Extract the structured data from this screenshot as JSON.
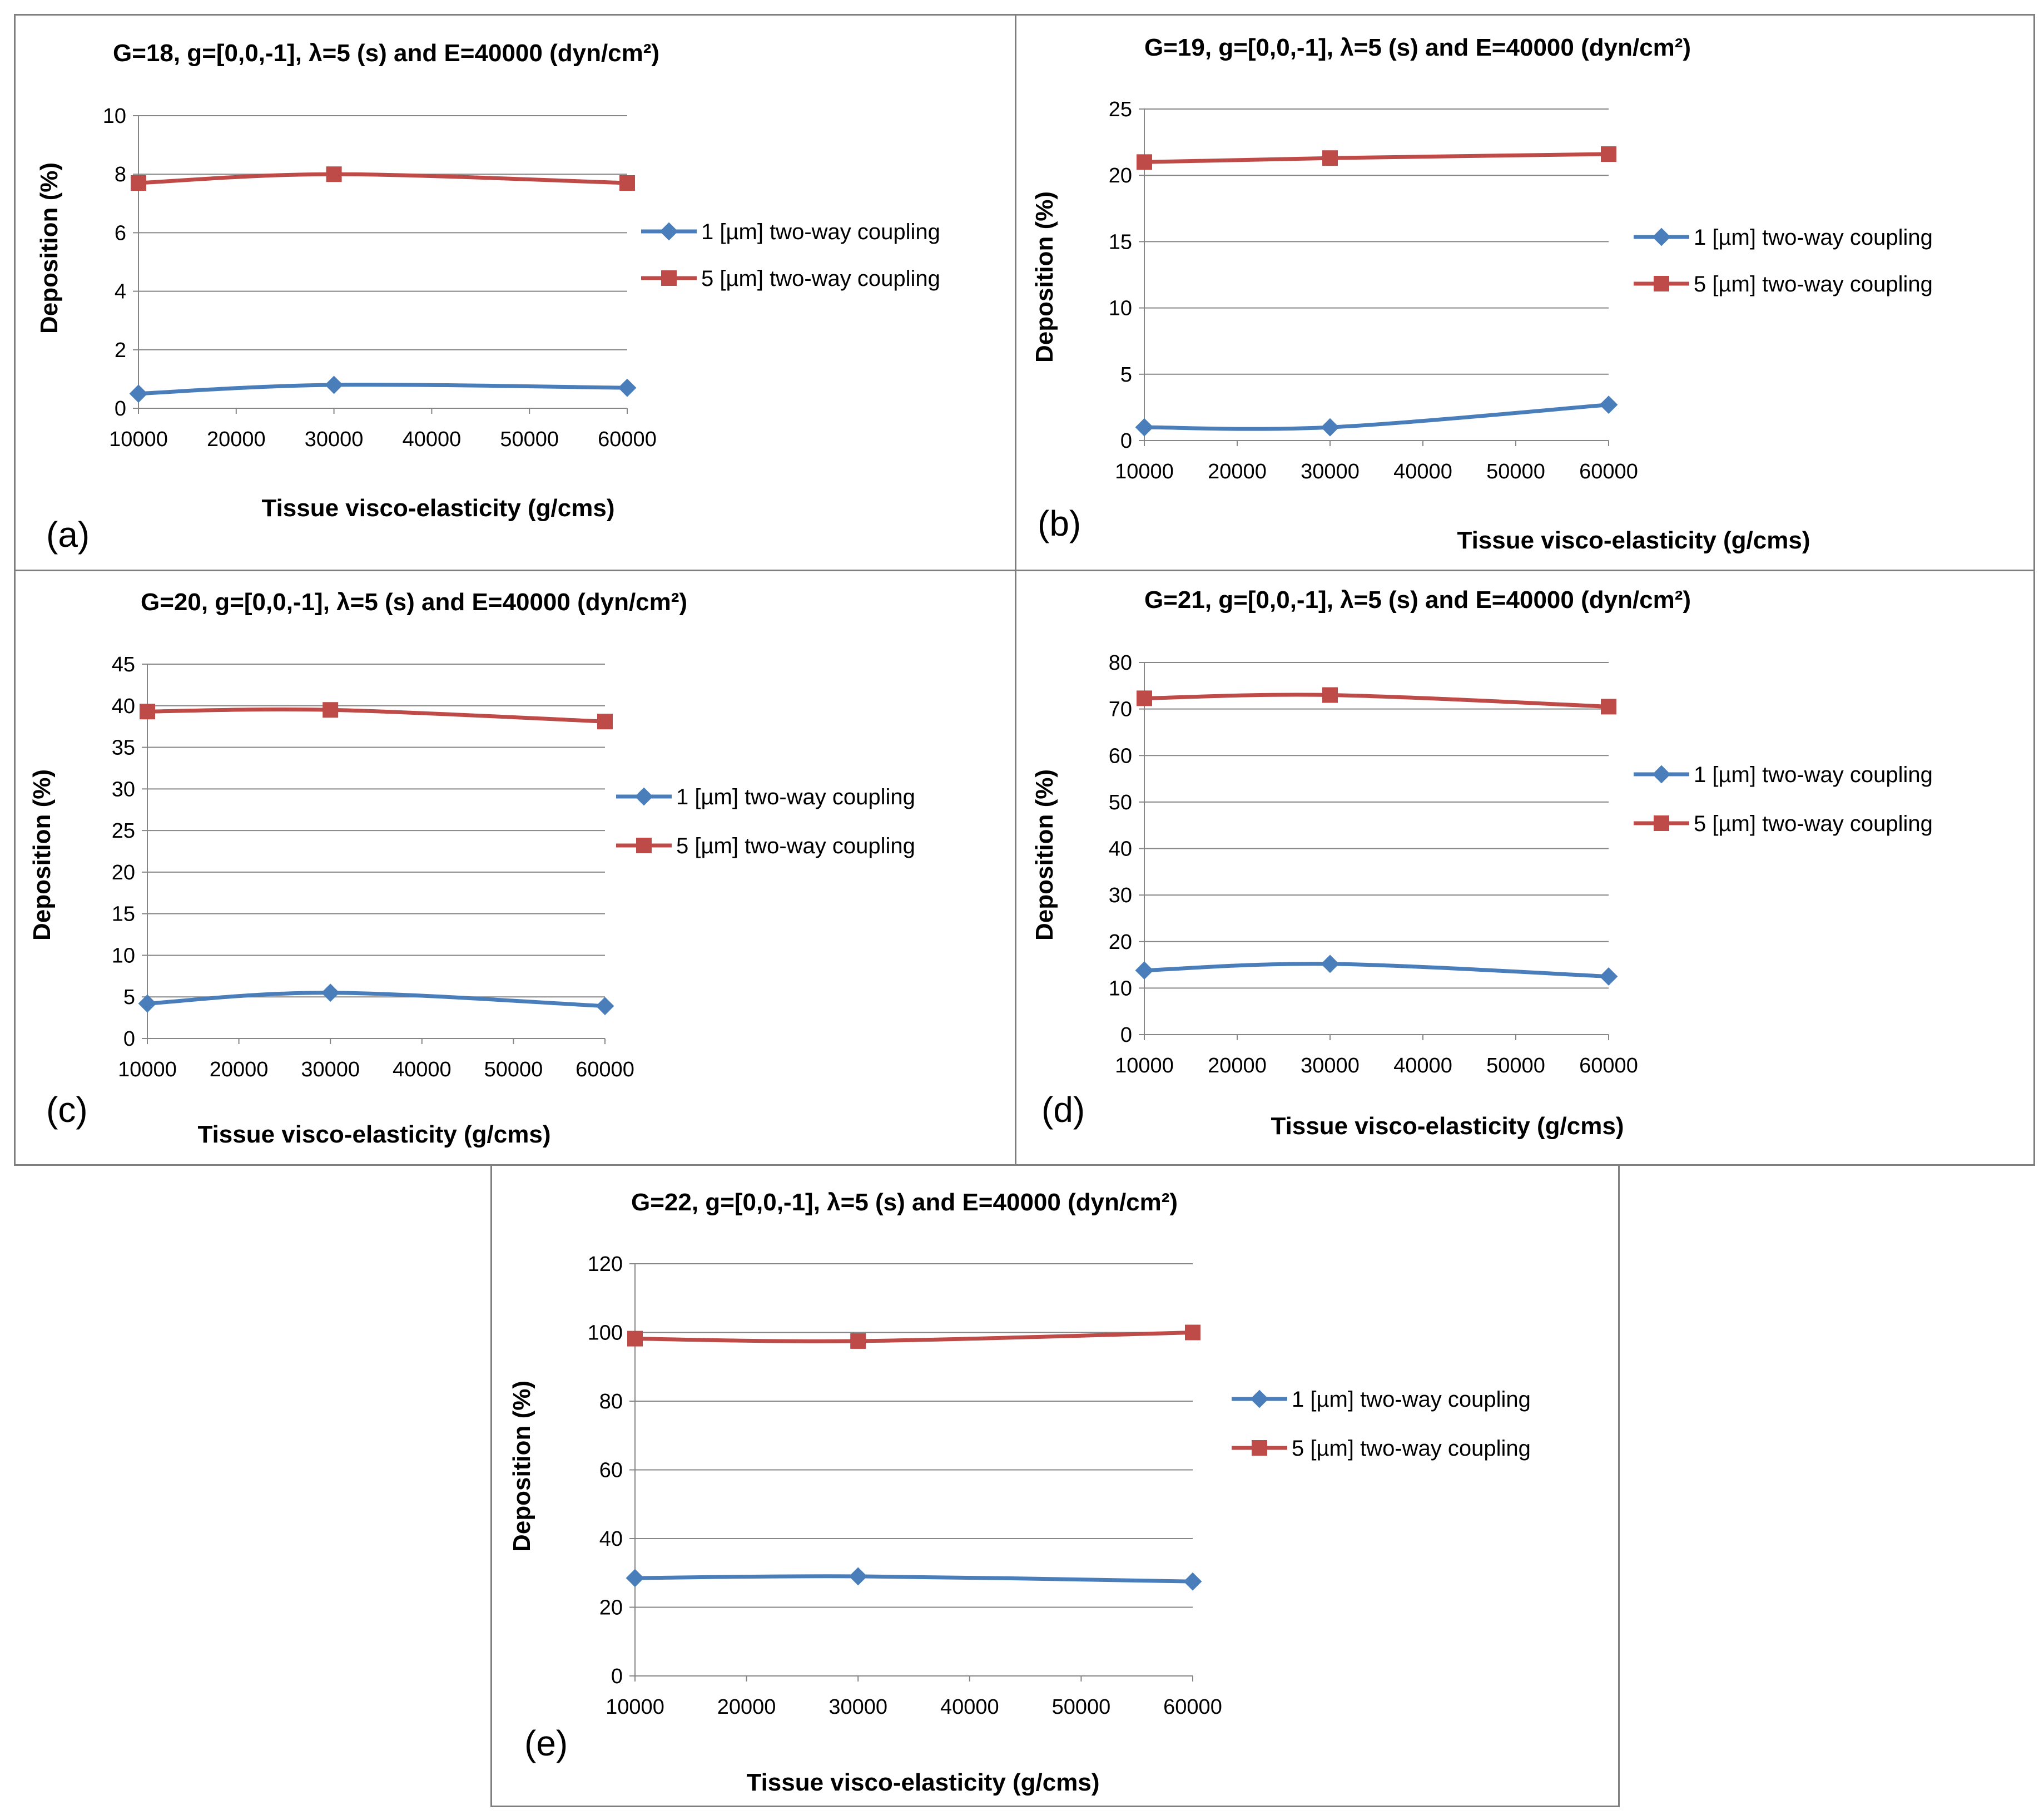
{
  "figure": {
    "axis_x_title": "Tissue visco-elasticity (g/cms)",
    "axis_y_title": "Deposition (%)"
  },
  "chart_data": [
    {
      "type": "line",
      "panel_label": "(a)",
      "title": "G=18, g=[0,0,-1],  λ=5 (s) and E=40000 (dyn/cm²)",
      "xlabel": "Tissue visco-elasticity (g/cms)",
      "ylabel": "Deposition (%)",
      "x_ticks": [
        "10000",
        "20000",
        "30000",
        "40000",
        "50000",
        "60000"
      ],
      "y_ticks": [
        "0",
        "2",
        "4",
        "6",
        "8",
        "10"
      ],
      "xlim": [
        10000,
        60000
      ],
      "ylim": [
        0,
        10
      ],
      "x": [
        10000,
        30000,
        60000
      ],
      "series": [
        {
          "name": "1 [µm] two-way coupling",
          "color": "#4a7ebb",
          "marker": "diamond",
          "values": [
            0.5,
            0.8,
            0.7
          ]
        },
        {
          "name": "5 [µm] two-way coupling",
          "color": "#be4b48",
          "marker": "square",
          "values": [
            7.7,
            8.0,
            7.7
          ]
        }
      ]
    },
    {
      "type": "line",
      "panel_label": "(b)",
      "title": "G=19, g=[0,0,-1],  λ=5 (s) and E=40000 (dyn/cm²)",
      "xlabel": "Tissue visco-elasticity (g/cms)",
      "ylabel": "Deposition (%)",
      "x_ticks": [
        "10000",
        "20000",
        "30000",
        "40000",
        "50000",
        "60000"
      ],
      "y_ticks": [
        "0",
        "5",
        "10",
        "15",
        "20",
        "25"
      ],
      "xlim": [
        10000,
        60000
      ],
      "ylim": [
        0,
        25
      ],
      "x": [
        10000,
        30000,
        60000
      ],
      "series": [
        {
          "name": "1 [µm] two-way coupling",
          "color": "#4a7ebb",
          "marker": "diamond",
          "values": [
            1.0,
            1.0,
            2.7
          ]
        },
        {
          "name": "5 [µm] two-way coupling",
          "color": "#be4b48",
          "marker": "square",
          "values": [
            21.0,
            21.3,
            21.6
          ]
        }
      ]
    },
    {
      "type": "line",
      "panel_label": "(c)",
      "title": "G=20, g=[0,0,-1],  λ=5 (s) and E=40000 (dyn/cm²)",
      "xlabel": "Tissue visco-elasticity (g/cms)",
      "ylabel": "Deposition (%)",
      "x_ticks": [
        "10000",
        "20000",
        "30000",
        "40000",
        "50000",
        "60000"
      ],
      "y_ticks": [
        "0",
        "5",
        "10",
        "15",
        "20",
        "25",
        "30",
        "35",
        "40",
        "45"
      ],
      "xlim": [
        10000,
        60000
      ],
      "ylim": [
        0,
        45
      ],
      "x": [
        10000,
        30000,
        60000
      ],
      "series": [
        {
          "name": "1 [µm] two-way coupling",
          "color": "#4a7ebb",
          "marker": "diamond",
          "values": [
            4.2,
            5.5,
            3.9
          ]
        },
        {
          "name": "5 [µm] two-way coupling",
          "color": "#be4b48",
          "marker": "square",
          "values": [
            39.3,
            39.5,
            38.1
          ]
        }
      ]
    },
    {
      "type": "line",
      "panel_label": "(d)",
      "title": "G=21, g=[0,0,-1],  λ=5 (s) and E=40000 (dyn/cm²)",
      "xlabel": "Tissue visco-elasticity (g/cms)",
      "ylabel": "Deposition (%)",
      "x_ticks": [
        "10000",
        "20000",
        "30000",
        "40000",
        "50000",
        "60000"
      ],
      "y_ticks": [
        "0",
        "10",
        "20",
        "30",
        "40",
        "50",
        "60",
        "70",
        "80"
      ],
      "xlim": [
        10000,
        60000
      ],
      "ylim": [
        0,
        80
      ],
      "x": [
        10000,
        30000,
        60000
      ],
      "series": [
        {
          "name": "1 [µm] two-way coupling",
          "color": "#4a7ebb",
          "marker": "diamond",
          "values": [
            13.8,
            15.2,
            12.5
          ]
        },
        {
          "name": "5 [µm] two-way coupling",
          "color": "#be4b48",
          "marker": "square",
          "values": [
            72.3,
            73.0,
            70.5
          ]
        }
      ]
    },
    {
      "type": "line",
      "panel_label": "(e)",
      "title": "G=22, g=[0,0,-1],  λ=5 (s) and E=40000 (dyn/cm²)",
      "xlabel": "Tissue visco-elasticity (g/cms)",
      "ylabel": "Deposition (%)",
      "x_ticks": [
        "10000",
        "20000",
        "30000",
        "40000",
        "50000",
        "60000"
      ],
      "y_ticks": [
        "0",
        "20",
        "40",
        "60",
        "80",
        "100",
        "120"
      ],
      "xlim": [
        10000,
        60000
      ],
      "ylim": [
        0,
        120
      ],
      "x": [
        10000,
        30000,
        60000
      ],
      "series": [
        {
          "name": "1 [µm] two-way coupling",
          "color": "#4a7ebb",
          "marker": "diamond",
          "values": [
            28.5,
            29.0,
            27.5
          ]
        },
        {
          "name": "5 [µm] two-way coupling",
          "color": "#be4b48",
          "marker": "square",
          "values": [
            98.2,
            97.5,
            100.0
          ]
        }
      ]
    }
  ]
}
